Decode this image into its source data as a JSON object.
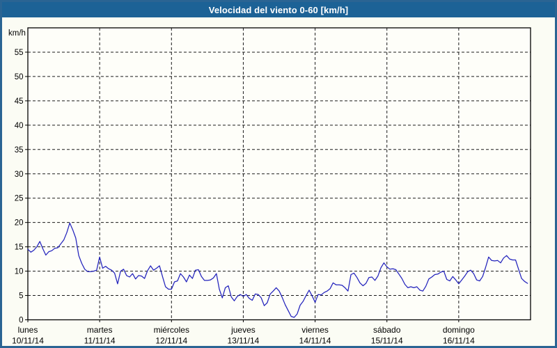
{
  "window": {
    "title": "Velocidad del viento 0-60 [km/h]"
  },
  "colors": {
    "outer_border": "#2a6493",
    "title_bar_bg": "#1c6296",
    "title_text": "#ffffff",
    "canvas_bg": "#fbfcf4",
    "plot_bg": "#fefef9",
    "grid": "#1a1a1a",
    "axis": "#000000",
    "series_line": "#2222bc"
  },
  "chart_data": {
    "type": "line",
    "title": "Velocidad del viento 0-60 [km/h]",
    "xlabel": "",
    "ylabel": "km/h",
    "ylim": [
      0,
      60
    ],
    "ytick_interval": 5,
    "ytick_labels": [
      "0",
      "5",
      "10",
      "15",
      "20",
      "25",
      "30",
      "35",
      "40",
      "45",
      "50",
      "55"
    ],
    "grid": "dashed",
    "legend_position": "none",
    "x_span_days": 7,
    "sample_interval": "hourly",
    "days": [
      {
        "name": "lunes",
        "date": "10/11/14"
      },
      {
        "name": "martes",
        "date": "11/11/14"
      },
      {
        "name": "miércoles",
        "date": "12/11/14"
      },
      {
        "name": "jueves",
        "date": "13/11/14"
      },
      {
        "name": "viernes",
        "date": "14/11/14"
      },
      {
        "name": "sábado",
        "date": "15/11/14"
      },
      {
        "name": "domingo",
        "date": "16/11/14"
      }
    ],
    "series": [
      {
        "name": "Velocidad del viento",
        "unit": "km/h",
        "values": [
          14.5,
          13.9,
          14.3,
          15.0,
          16.1,
          14.6,
          13.3,
          14.0,
          14.2,
          14.7,
          14.8,
          15.6,
          16.4,
          17.9,
          19.9,
          18.5,
          16.8,
          13.2,
          11.6,
          10.4,
          9.9,
          9.9,
          10.0,
          10.2,
          12.9,
          10.6,
          11.0,
          10.5,
          10.2,
          9.6,
          7.4,
          10.0,
          10.4,
          9.1,
          8.8,
          9.5,
          8.4,
          9.1,
          9.0,
          8.5,
          10.1,
          11.1,
          10.2,
          10.6,
          11.1,
          8.9,
          6.8,
          6.3,
          6.3,
          7.8,
          8.0,
          9.5,
          8.8,
          7.8,
          9.2,
          8.5,
          10.2,
          10.3,
          8.9,
          8.1,
          8.1,
          8.2,
          8.6,
          9.5,
          6.3,
          4.5,
          6.6,
          7.0,
          4.7,
          3.9,
          4.8,
          5.2,
          4.8,
          5.2,
          4.4,
          4.0,
          5.3,
          5.2,
          4.5,
          2.9,
          3.5,
          5.3,
          5.9,
          6.6,
          5.9,
          4.6,
          3.1,
          1.9,
          0.7,
          0.5,
          1.2,
          3.0,
          3.8,
          5.0,
          6.1,
          4.9,
          3.6,
          5.2,
          5.1,
          5.6,
          5.9,
          6.4,
          7.6,
          7.2,
          7.2,
          7.1,
          6.6,
          5.9,
          9.3,
          9.6,
          8.7,
          7.6,
          7.0,
          7.5,
          8.7,
          8.8,
          8.1,
          9.0,
          10.7,
          11.7,
          10.9,
          10.4,
          10.5,
          10.3,
          9.4,
          8.5,
          7.3,
          6.6,
          6.8,
          6.6,
          6.8,
          6.1,
          5.9,
          6.9,
          8.4,
          8.8,
          9.3,
          9.4,
          9.8,
          10.0,
          8.3,
          8.0,
          8.9,
          8.2,
          7.4,
          8.2,
          9.0,
          9.9,
          10.2,
          9.5,
          8.2,
          8.0,
          8.9,
          10.8,
          12.9,
          12.2,
          12.1,
          12.2,
          11.7,
          12.7,
          13.2,
          12.5,
          12.3,
          12.3,
          10.4,
          8.5,
          7.9,
          7.5
        ]
      }
    ]
  }
}
